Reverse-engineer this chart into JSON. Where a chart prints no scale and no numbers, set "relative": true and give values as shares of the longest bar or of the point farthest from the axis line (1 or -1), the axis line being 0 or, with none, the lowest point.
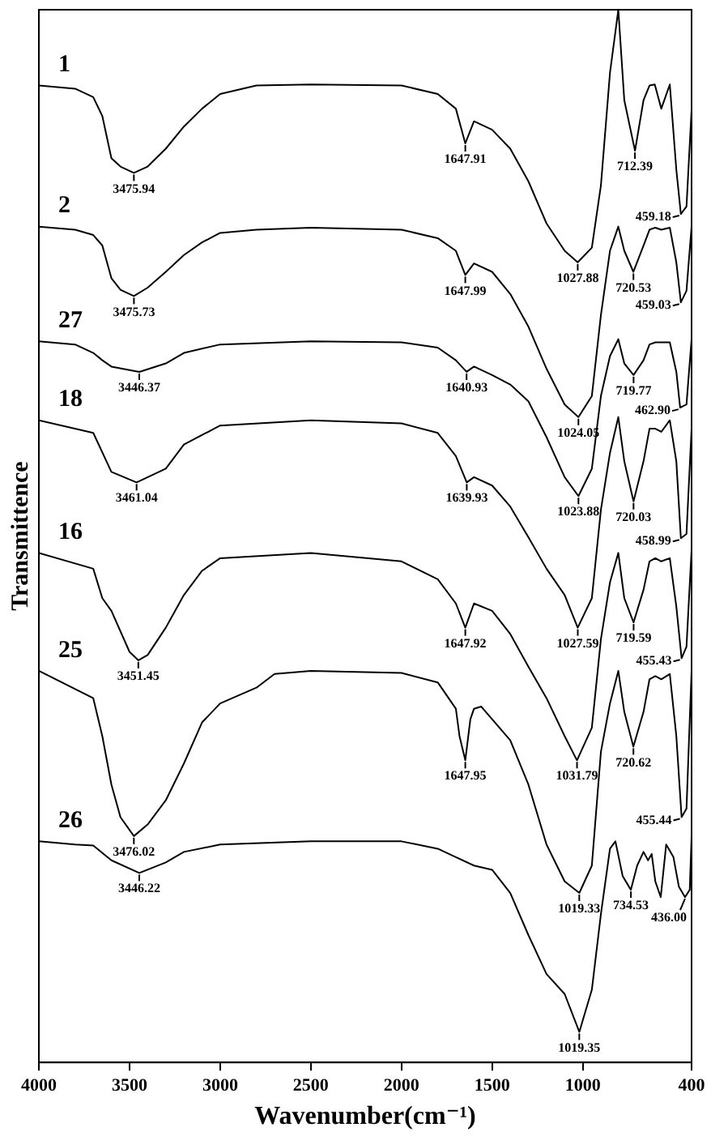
{
  "chart_data": {
    "type": "line",
    "relative": true,
    "xlabel": "Wavenumber(cm⁻¹)",
    "ylabel": "Transmittence",
    "xlim": [
      4000,
      400
    ],
    "xticks": [
      4000,
      3500,
      3000,
      2500,
      2000,
      1500,
      1000,
      400
    ],
    "grid": false,
    "legend": "left",
    "marker": "none",
    "line_style": "solid",
    "series": [
      {
        "name": "1",
        "color": "#000000",
        "x": [
          4000,
          3800,
          3700,
          3650,
          3600,
          3550,
          3476,
          3400,
          3300,
          3200,
          3100,
          3000,
          2800,
          2500,
          2000,
          1800,
          1700,
          1648,
          1600,
          1500,
          1400,
          1300,
          1200,
          1100,
          1028,
          950,
          900,
          850,
          804,
          771,
          712,
          665,
          632,
          603,
          567,
          520,
          484,
          459,
          428,
          400
        ],
        "values": [
          0.928,
          0.925,
          0.917,
          0.899,
          0.859,
          0.851,
          0.845,
          0.851,
          0.868,
          0.889,
          0.906,
          0.92,
          0.928,
          0.929,
          0.928,
          0.92,
          0.906,
          0.873,
          0.894,
          0.886,
          0.868,
          0.837,
          0.797,
          0.771,
          0.76,
          0.774,
          0.833,
          0.94,
          1,
          0.914,
          0.866,
          0.914,
          0.928,
          0.929,
          0.906,
          0.929,
          0.848,
          0.806,
          0.813,
          0.905
        ]
      },
      {
        "name": "2",
        "color": "#000000",
        "x": [
          4000,
          3800,
          3700,
          3650,
          3600,
          3550,
          3476,
          3400,
          3300,
          3200,
          3100,
          3000,
          2800,
          2500,
          2000,
          1800,
          1700,
          1648,
          1600,
          1500,
          1400,
          1300,
          1200,
          1100,
          1024,
          950,
          900,
          850,
          804,
          771,
          721,
          665,
          632,
          600,
          567,
          520,
          484,
          459,
          428,
          400
        ],
        "values": [
          0.794,
          0.791,
          0.786,
          0.776,
          0.745,
          0.734,
          0.728,
          0.736,
          0.751,
          0.767,
          0.779,
          0.788,
          0.791,
          0.793,
          0.791,
          0.783,
          0.771,
          0.748,
          0.759,
          0.751,
          0.73,
          0.699,
          0.659,
          0.625,
          0.613,
          0.633,
          0.71,
          0.771,
          0.794,
          0.771,
          0.751,
          0.776,
          0.791,
          0.793,
          0.791,
          0.793,
          0.76,
          0.722,
          0.733,
          0.794
        ]
      },
      {
        "name": "27",
        "color": "#000000",
        "x": [
          4000,
          3800,
          3700,
          3650,
          3600,
          3446,
          3300,
          3200,
          3000,
          2500,
          2000,
          1800,
          1700,
          1641,
          1600,
          1500,
          1400,
          1300,
          1200,
          1100,
          1024,
          950,
          900,
          850,
          804,
          771,
          720,
          665,
          632,
          600,
          567,
          520,
          484,
          463,
          428,
          400
        ],
        "values": [
          0.685,
          0.682,
          0.674,
          0.667,
          0.661,
          0.656,
          0.664,
          0.674,
          0.682,
          0.685,
          0.684,
          0.679,
          0.667,
          0.656,
          0.661,
          0.653,
          0.644,
          0.628,
          0.594,
          0.556,
          0.538,
          0.564,
          0.633,
          0.671,
          0.687,
          0.664,
          0.653,
          0.667,
          0.682,
          0.684,
          0.684,
          0.684,
          0.656,
          0.622,
          0.625,
          0.687
        ]
      },
      {
        "name": "18",
        "color": "#000000",
        "x": [
          4000,
          3700,
          3600,
          3461,
          3300,
          3200,
          3000,
          2500,
          2000,
          1800,
          1700,
          1640,
          1600,
          1500,
          1400,
          1300,
          1200,
          1100,
          1028,
          950,
          900,
          850,
          804,
          771,
          720,
          665,
          632,
          600,
          567,
          520,
          484,
          459,
          428,
          400
        ],
        "values": [
          0.61,
          0.598,
          0.561,
          0.551,
          0.564,
          0.587,
          0.605,
          0.61,
          0.607,
          0.598,
          0.576,
          0.551,
          0.556,
          0.548,
          0.528,
          0.499,
          0.469,
          0.444,
          0.413,
          0.441,
          0.525,
          0.579,
          0.613,
          0.571,
          0.533,
          0.571,
          0.602,
          0.602,
          0.599,
          0.61,
          0.571,
          0.498,
          0.502,
          0.602
        ]
      },
      {
        "name": "16",
        "color": "#000000",
        "x": [
          4000,
          3700,
          3650,
          3600,
          3500,
          3451,
          3400,
          3300,
          3200,
          3100,
          3000,
          2500,
          2000,
          1800,
          1700,
          1648,
          1600,
          1500,
          1400,
          1300,
          1200,
          1100,
          1032,
          950,
          900,
          850,
          804,
          771,
          720,
          665,
          632,
          600,
          567,
          520,
          484,
          455,
          428,
          400
        ],
        "values": [
          0.484,
          0.469,
          0.441,
          0.429,
          0.39,
          0.382,
          0.387,
          0.413,
          0.444,
          0.467,
          0.479,
          0.484,
          0.476,
          0.459,
          0.436,
          0.413,
          0.436,
          0.429,
          0.407,
          0.376,
          0.346,
          0.31,
          0.287,
          0.318,
          0.402,
          0.456,
          0.484,
          0.441,
          0.418,
          0.449,
          0.476,
          0.479,
          0.476,
          0.479,
          0.433,
          0.384,
          0.395,
          0.487
        ]
      },
      {
        "name": "25",
        "color": "#000000",
        "x": [
          4000,
          3700,
          3650,
          3600,
          3550,
          3476,
          3400,
          3300,
          3200,
          3100,
          3000,
          2800,
          2700,
          2500,
          2000,
          1800,
          1700,
          1680,
          1648,
          1620,
          1600,
          1560,
          1500,
          1400,
          1300,
          1200,
          1100,
          1019,
          950,
          900,
          850,
          804,
          771,
          721,
          665,
          632,
          600,
          567,
          520,
          484,
          455,
          428,
          400
        ],
        "values": [
          0.372,
          0.346,
          0.31,
          0.264,
          0.233,
          0.215,
          0.226,
          0.249,
          0.284,
          0.323,
          0.341,
          0.356,
          0.369,
          0.372,
          0.37,
          0.361,
          0.336,
          0.31,
          0.287,
          0.326,
          0.336,
          0.338,
          0.326,
          0.306,
          0.264,
          0.207,
          0.172,
          0.161,
          0.187,
          0.295,
          0.341,
          0.372,
          0.333,
          0.3,
          0.333,
          0.364,
          0.367,
          0.364,
          0.369,
          0.31,
          0.233,
          0.241,
          0.372
        ]
      },
      {
        "name": "26",
        "color": "#000000",
        "x": [
          4000,
          3800,
          3700,
          3600,
          3446,
          3300,
          3200,
          3000,
          2500,
          2000,
          1800,
          1700,
          1600,
          1500,
          1400,
          1300,
          1200,
          1100,
          1019,
          950,
          900,
          850,
          820,
          780,
          735,
          700,
          665,
          640,
          620,
          600,
          570,
          540,
          500,
          470,
          436,
          410,
          400
        ],
        "values": [
          0.21,
          0.207,
          0.206,
          0.192,
          0.18,
          0.19,
          0.2,
          0.207,
          0.21,
          0.21,
          0.203,
          0.195,
          0.187,
          0.183,
          0.161,
          0.121,
          0.084,
          0.065,
          0.029,
          0.069,
          0.141,
          0.203,
          0.21,
          0.177,
          0.164,
          0.187,
          0.2,
          0.192,
          0.198,
          0.172,
          0.157,
          0.207,
          0.195,
          0.167,
          0.157,
          0.164,
          0.215
        ]
      }
    ],
    "annotations": [
      {
        "text": "3475.94",
        "x": 3475.94,
        "y": 0.845
      },
      {
        "text": "1647.91",
        "x": 1647.91,
        "y": 0.873
      },
      {
        "text": "1027.88",
        "x": 1027.88,
        "y": 0.76
      },
      {
        "text": "712.39",
        "x": 712.39,
        "y": 0.866
      },
      {
        "text": "459.18",
        "x": 459.18,
        "y": 0.806
      },
      {
        "text": "3475.73",
        "x": 3475.73,
        "y": 0.728
      },
      {
        "text": "1647.99",
        "x": 1647.99,
        "y": 0.748
      },
      {
        "text": "1024.05",
        "x": 1024.05,
        "y": 0.613
      },
      {
        "text": "720.53",
        "x": 720.53,
        "y": 0.751
      },
      {
        "text": "459.03",
        "x": 459.03,
        "y": 0.722
      },
      {
        "text": "3446.37",
        "x": 3446.37,
        "y": 0.656
      },
      {
        "text": "1640.93",
        "x": 1640.93,
        "y": 0.656
      },
      {
        "text": "1023.88",
        "x": 1023.88,
        "y": 0.538
      },
      {
        "text": "719.77",
        "x": 719.77,
        "y": 0.653
      },
      {
        "text": "462.90",
        "x": 462.9,
        "y": 0.622
      },
      {
        "text": "3461.04",
        "x": 3461.04,
        "y": 0.551
      },
      {
        "text": "1639.93",
        "x": 1639.93,
        "y": 0.551
      },
      {
        "text": "1027.59",
        "x": 1027.59,
        "y": 0.413
      },
      {
        "text": "720.03",
        "x": 720.03,
        "y": 0.533
      },
      {
        "text": "458.99",
        "x": 458.99,
        "y": 0.498
      },
      {
        "text": "3451.45",
        "x": 3451.45,
        "y": 0.382
      },
      {
        "text": "1647.92",
        "x": 1647.92,
        "y": 0.413
      },
      {
        "text": "1031.79",
        "x": 1031.79,
        "y": 0.287
      },
      {
        "text": "719.59",
        "x": 719.59,
        "y": 0.418
      },
      {
        "text": "455.43",
        "x": 455.43,
        "y": 0.384
      },
      {
        "text": "3476.02",
        "x": 3476.02,
        "y": 0.215
      },
      {
        "text": "1647.95",
        "x": 1647.95,
        "y": 0.287
      },
      {
        "text": "1019.33",
        "x": 1019.33,
        "y": 0.161
      },
      {
        "text": "720.62",
        "x": 720.62,
        "y": 0.3
      },
      {
        "text": "455.44",
        "x": 455.44,
        "y": 0.233
      },
      {
        "text": "3446.22",
        "x": 3446.22,
        "y": 0.18
      },
      {
        "text": "1019.35",
        "x": 1019.35,
        "y": 0.029
      },
      {
        "text": "734.53",
        "x": 734.53,
        "y": 0.164
      },
      {
        "text": "436.00",
        "x": 436.0,
        "y": 0.157
      }
    ]
  }
}
